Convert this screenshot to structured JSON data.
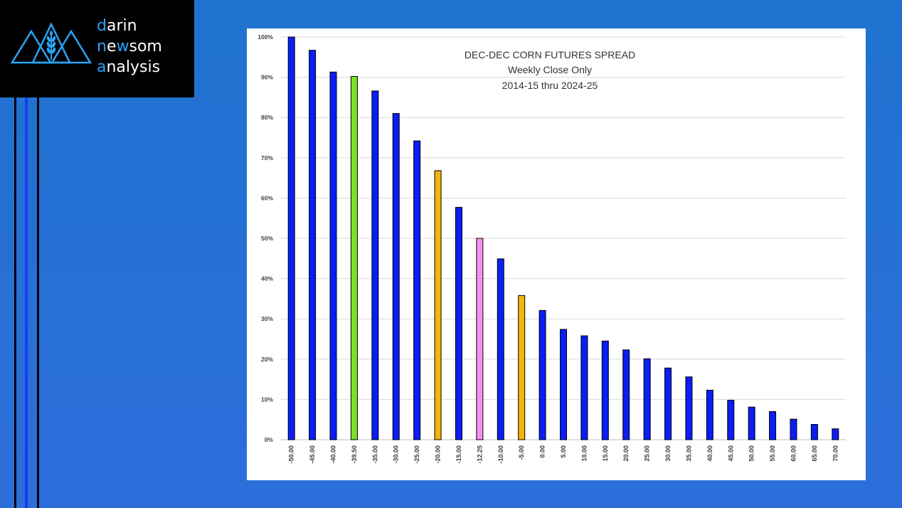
{
  "brand": {
    "line1_initial": "d",
    "line1_rest": "arin",
    "line2_initial": "n",
    "line2_mid": "e",
    "line2_accent": "w",
    "line2_rest": "som",
    "line3_initial": "a",
    "line3_rest": "nalysis",
    "logo_icon": "mountains-wheat-icon",
    "accent_color": "#2aa3f5"
  },
  "chart_data": {
    "type": "bar",
    "title_lines": [
      "DEC-DEC CORN FUTURES SPREAD",
      "Weekly Close Only",
      "2014-15 thru 2024-25"
    ],
    "xlabel": "",
    "ylabel": "",
    "ylim": [
      0,
      100
    ],
    "y_tick_labels": [
      "0%",
      "10%",
      "20%",
      "30%",
      "40%",
      "50%",
      "60%",
      "70%",
      "80%",
      "90%",
      "100%"
    ],
    "categories": [
      "-50.00",
      "-45.00",
      "-40.00",
      "-39.50",
      "-35.00",
      "-30.00",
      "-25.00",
      "-20.00",
      "-15.00",
      "-12.25",
      "-10.00",
      "-5.00",
      "0.00",
      "5.00",
      "10.00",
      "15.00",
      "20.00",
      "25.00",
      "30.00",
      "35.00",
      "40.00",
      "45.00",
      "50.00",
      "55.00",
      "60.00",
      "65.00",
      "70.00"
    ],
    "values": [
      100,
      96.7,
      91.3,
      90.2,
      86.6,
      81,
      74.2,
      66.8,
      57.7,
      50,
      44.9,
      35.8,
      32.1,
      27.4,
      25.8,
      24.5,
      22.3,
      20.1,
      17.8,
      15.6,
      12.3,
      9.8,
      8.1,
      7,
      5.1,
      3.8,
      2.7
    ],
    "bar_colors": [
      "#0a1ef5",
      "#0a1ef5",
      "#0a1ef5",
      "#7be12a",
      "#0a1ef5",
      "#0a1ef5",
      "#0a1ef5",
      "#f5b40f",
      "#0a1ef5",
      "#f590ef",
      "#0a1ef5",
      "#f5b40f",
      "#0a1ef5",
      "#0a1ef5",
      "#0a1ef5",
      "#0a1ef5",
      "#0a1ef5",
      "#0a1ef5",
      "#0a1ef5",
      "#0a1ef5",
      "#0a1ef5",
      "#0a1ef5",
      "#0a1ef5",
      "#0a1ef5",
      "#0a1ef5",
      "#0a1ef5",
      "#0a1ef5"
    ],
    "grid": true,
    "legend": "none"
  }
}
